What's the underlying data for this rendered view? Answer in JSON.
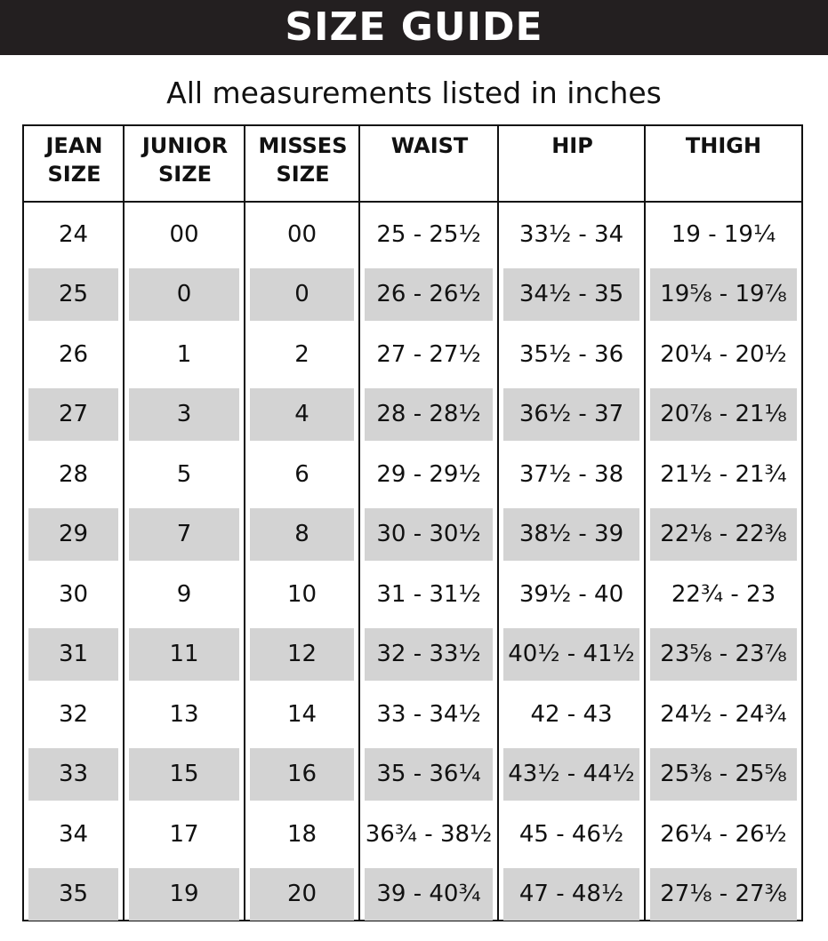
{
  "banner": {
    "title": "SIZE GUIDE"
  },
  "subtitle": "All measurements listed in inches",
  "table": {
    "headers": [
      [
        "JEAN",
        "SIZE"
      ],
      [
        "JUNIOR",
        "SIZE"
      ],
      [
        "MISSES",
        "SIZE"
      ],
      [
        "WAIST"
      ],
      [
        "HIP"
      ],
      [
        "THIGH"
      ]
    ],
    "rows": [
      [
        "24",
        "00",
        "00",
        "25 - 25½",
        "33½ - 34",
        "19 - 19¼"
      ],
      [
        "25",
        "0",
        "0",
        "26 - 26½",
        "34½ - 35",
        "19⅝ - 19⅞"
      ],
      [
        "26",
        "1",
        "2",
        "27 - 27½",
        "35½ - 36",
        "20¼ - 20½"
      ],
      [
        "27",
        "3",
        "4",
        "28 - 28½",
        "36½ - 37",
        "20⅞ - 21⅛"
      ],
      [
        "28",
        "5",
        "6",
        "29 - 29½",
        "37½ - 38",
        "21½ - 21¾"
      ],
      [
        "29",
        "7",
        "8",
        "30 - 30½",
        "38½ - 39",
        "22⅛ - 22⅜"
      ],
      [
        "30",
        "9",
        "10",
        "31 - 31½",
        "39½ - 40",
        "22¾ - 23"
      ],
      [
        "31",
        "11",
        "12",
        "32 - 33½",
        "40½ - 41½",
        "23⅝ - 23⅞"
      ],
      [
        "32",
        "13",
        "14",
        "33 - 34½",
        "42 - 43",
        "24½ - 24¾"
      ],
      [
        "33",
        "15",
        "16",
        "35 - 36¼",
        "43½ - 44½",
        "25⅜ - 25⅝"
      ],
      [
        "34",
        "17",
        "18",
        "36¾ - 38½",
        "45 - 46½",
        "26¼ - 26½"
      ],
      [
        "35",
        "19",
        "20",
        "39 - 40¾",
        "47 - 48½",
        "27⅛ - 27⅜"
      ]
    ],
    "shade_color": "#d3d3d3"
  }
}
